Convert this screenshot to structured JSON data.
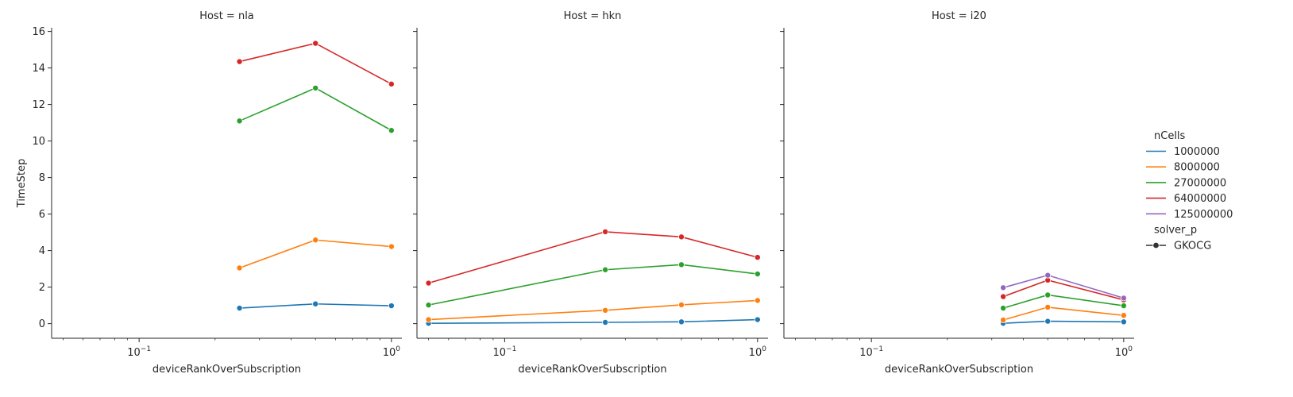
{
  "chart_data": {
    "type": "line",
    "facet_label": "Host",
    "xlabel": "deviceRankOverSubscription",
    "ylabel": "TimeStep",
    "xscale": "log",
    "xlim": [
      0.045,
      1.1
    ],
    "ylim": [
      -0.8,
      16.2
    ],
    "x_ticks": [
      0.1,
      1.0
    ],
    "x_tick_labels": [
      {
        "base": "10",
        "exp": "−1"
      },
      {
        "base": "10",
        "exp": "0"
      }
    ],
    "y_ticks": [
      0,
      2,
      4,
      6,
      8,
      10,
      12,
      14,
      16
    ],
    "y_tick_labels": [
      "0",
      "2",
      "4",
      "6",
      "8",
      "10",
      "12",
      "14",
      "16"
    ],
    "grid": false,
    "legend": {
      "placement": "right",
      "hue_title": "nCells",
      "hue_entries": [
        {
          "label": "1000000",
          "color": "#1f77b4"
        },
        {
          "label": "8000000",
          "color": "#ff7f0e"
        },
        {
          "label": "27000000",
          "color": "#2ca02c"
        },
        {
          "label": "64000000",
          "color": "#d62728"
        },
        {
          "label": "125000000",
          "color": "#9467bd"
        }
      ],
      "style_title": "solver_p",
      "style_entries": [
        {
          "label": "GKOCG",
          "color": "#333333"
        }
      ]
    },
    "facets": [
      {
        "title": "Host = nla",
        "series": [
          {
            "name": "1000000",
            "x": [
              0.25,
              0.5,
              1.0
            ],
            "values": [
              0.85,
              1.08,
              0.98
            ]
          },
          {
            "name": "8000000",
            "x": [
              0.25,
              0.5,
              1.0
            ],
            "values": [
              3.05,
              4.58,
              4.22
            ]
          },
          {
            "name": "27000000",
            "x": [
              0.25,
              0.5,
              1.0
            ],
            "values": [
              11.1,
              12.9,
              10.58
            ]
          },
          {
            "name": "64000000",
            "x": [
              0.25,
              0.5,
              1.0
            ],
            "values": [
              14.35,
              15.35,
              13.12
            ]
          }
        ]
      },
      {
        "title": "Host = hkn",
        "series": [
          {
            "name": "1000000",
            "x": [
              0.05,
              0.25,
              0.5,
              1.0
            ],
            "values": [
              0.02,
              0.07,
              0.1,
              0.22
            ]
          },
          {
            "name": "8000000",
            "x": [
              0.05,
              0.25,
              0.5,
              1.0
            ],
            "values": [
              0.22,
              0.73,
              1.03,
              1.27
            ]
          },
          {
            "name": "27000000",
            "x": [
              0.05,
              0.25,
              0.5,
              1.0
            ],
            "values": [
              1.02,
              2.95,
              3.23,
              2.72
            ]
          },
          {
            "name": "64000000",
            "x": [
              0.05,
              0.25,
              0.5,
              1.0
            ],
            "values": [
              2.22,
              5.03,
              4.75,
              3.63
            ]
          }
        ]
      },
      {
        "title": "Host = i20",
        "series": [
          {
            "name": "1000000",
            "x": [
              0.333,
              0.5,
              1.0
            ],
            "values": [
              0.02,
              0.13,
              0.1
            ]
          },
          {
            "name": "8000000",
            "x": [
              0.333,
              0.5,
              1.0
            ],
            "values": [
              0.2,
              0.9,
              0.45
            ]
          },
          {
            "name": "27000000",
            "x": [
              0.333,
              0.5,
              1.0
            ],
            "values": [
              0.85,
              1.57,
              0.98
            ]
          },
          {
            "name": "64000000",
            "x": [
              0.333,
              0.5,
              1.0
            ],
            "values": [
              1.48,
              2.38,
              1.3
            ]
          },
          {
            "name": "125000000",
            "x": [
              0.333,
              0.5,
              1.0
            ],
            "values": [
              1.97,
              2.65,
              1.4
            ]
          }
        ]
      }
    ]
  }
}
